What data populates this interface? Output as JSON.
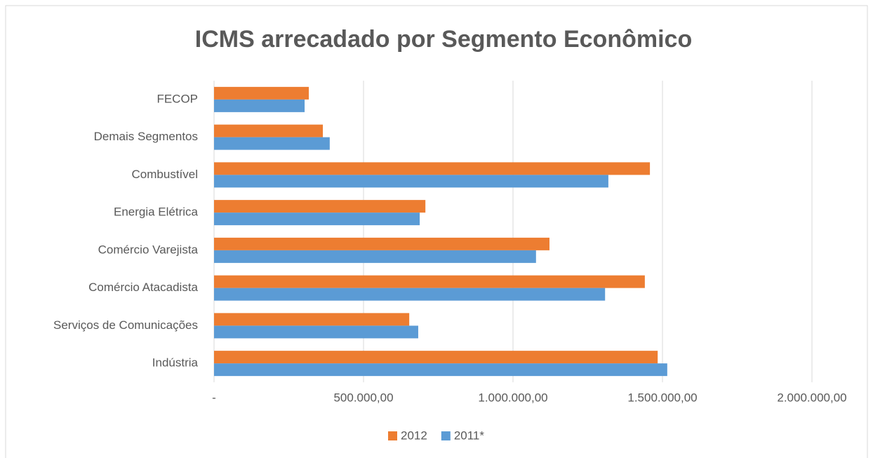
{
  "chart_data": {
    "type": "bar",
    "orientation": "horizontal",
    "title": "ICMS arrecadado por Segmento Econômico",
    "categories": [
      "FECOP",
      "Demais Segmentos",
      "Combustível",
      "Energia Elétrica",
      "Comércio Varejista",
      "Comércio Atacadista",
      "Serviços de Comunicações",
      "Indústria"
    ],
    "series": [
      {
        "name": "2012",
        "color": "#ed7d31",
        "values": [
          317000,
          364000,
          1458000,
          707000,
          1122000,
          1441000,
          653000,
          1484000
        ]
      },
      {
        "name": "2011*",
        "color": "#5b9bd5",
        "values": [
          303000,
          387000,
          1319000,
          688000,
          1077000,
          1308000,
          683000,
          1516000
        ]
      }
    ],
    "xlim": [
      0,
      2000000
    ],
    "xticks": [
      {
        "value": 0,
        "label": "-"
      },
      {
        "value": 500000,
        "label": "500.000,00"
      },
      {
        "value": 1000000,
        "label": "1.000.000,00"
      },
      {
        "value": 1500000,
        "label": "1.500.000,00"
      },
      {
        "value": 2000000,
        "label": "2.000.000,00"
      }
    ],
    "grid": true,
    "legend": "bottom"
  }
}
